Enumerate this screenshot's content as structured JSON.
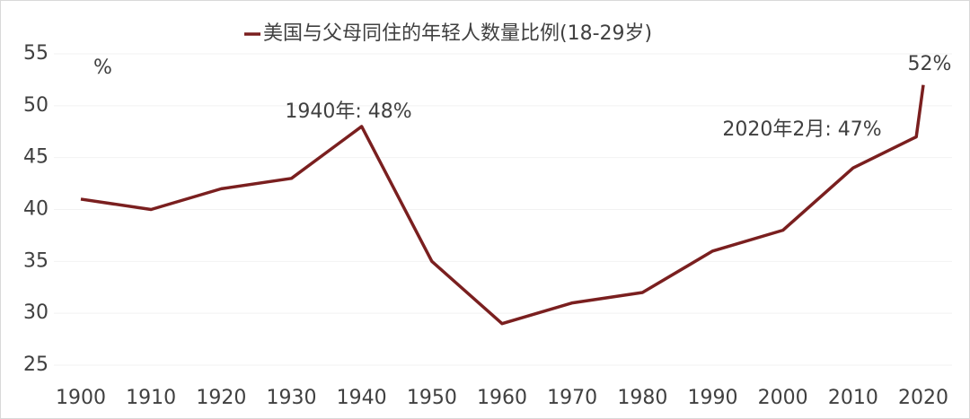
{
  "chart_data": {
    "type": "line",
    "series": [
      {
        "name": "美国与父母同住的年轻人数量比例(18-29岁)",
        "color": "#7a1f1f",
        "x": [
          1900,
          1910,
          1920,
          1930,
          1940,
          1950,
          1960,
          1970,
          1980,
          1990,
          2000,
          2010,
          2019,
          2020
        ],
        "values": [
          41,
          40,
          42,
          43,
          48,
          35,
          29,
          31,
          32,
          36,
          38,
          44,
          47,
          52
        ]
      }
    ],
    "xlim": [
      1900,
      2020
    ],
    "xticks": [
      1900,
      1910,
      1920,
      1930,
      1940,
      1950,
      1960,
      1970,
      1980,
      1990,
      2000,
      2010,
      2020
    ],
    "ylim": [
      25,
      55
    ],
    "yticks": [
      25,
      30,
      35,
      40,
      45,
      50,
      55
    ],
    "y_unit": "%",
    "annotations": [
      "1940年: 48%",
      "2020年2月: 47%",
      "52%"
    ],
    "grid": true,
    "legend": "top"
  }
}
